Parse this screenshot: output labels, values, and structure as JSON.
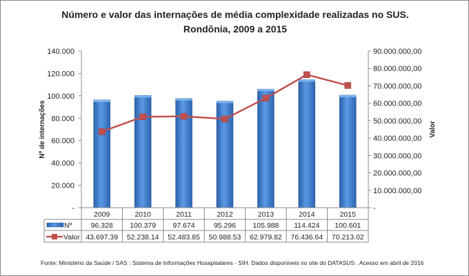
{
  "chart_data": {
    "type": "bar+line",
    "title": [
      "Número e valor das internações de média complexidade realizadas no SUS.",
      "Rondônia, 2009 a 2015"
    ],
    "categories": [
      "2009",
      "2010",
      "2011",
      "2012",
      "2013",
      "2014",
      "2015"
    ],
    "ylabel": "Nº de internações",
    "ylabel_right": "Valor",
    "ylim": [
      0,
      140000
    ],
    "ylim_right": [
      0,
      90000000
    ],
    "yticks": [
      "-",
      "20.000",
      "40.000",
      "60.000",
      "80.000",
      "100.000",
      "120.000",
      "140.000"
    ],
    "yticks_right": [
      "-",
      "10.000.000,00",
      "20.000.000,00",
      "30.000.000,00",
      "40.000.000,00",
      "50.000.000,00",
      "60.000.000,00",
      "70.000.000,00",
      "80.000.000,00",
      "90.000.000,00"
    ],
    "series": [
      {
        "name": "Nº",
        "type": "bar",
        "axis": "left",
        "color": "#3f7fd0",
        "values": [
          96328,
          100379,
          97674,
          95296,
          105988,
          114424,
          100601
        ],
        "labels": [
          "96.328",
          "100.379",
          "97.674",
          "95.296",
          "105.988",
          "114.424",
          "100.601"
        ]
      },
      {
        "name": "Valor",
        "type": "line",
        "axis": "right",
        "color": "#c0504d",
        "values": [
          43697390,
          52238140,
          52483850,
          50988530,
          62979820,
          76436640,
          70213020
        ],
        "labels": [
          "43.697.39",
          "52.238.14",
          "52.483.85",
          "50.988.53",
          "62.979.82",
          "76.436.64",
          "70.213.02"
        ]
      }
    ],
    "grid": false,
    "legend": "data-table"
  },
  "footer": "Fonte:  Ministério da Saúde  / SAS : Sistema de Informações Hosapitalares - SIH. Dados disponíveis no site do DATASUS . Acesso em abril de 2016"
}
